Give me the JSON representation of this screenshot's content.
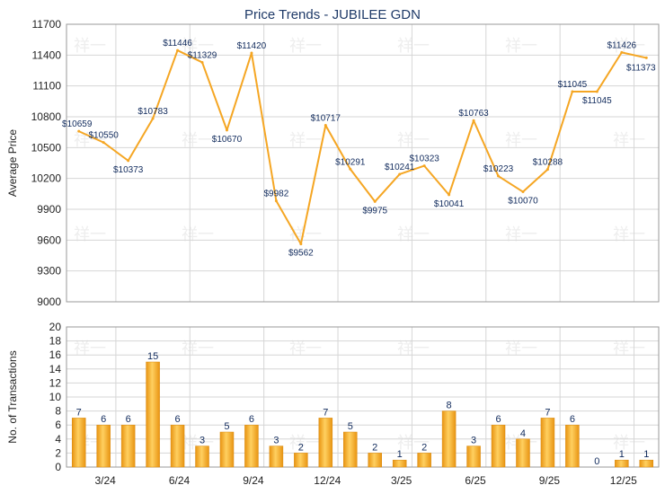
{
  "chart_data": [
    {
      "type": "line",
      "title": "Price Trends - JUBILEE GDN",
      "ylabel": "Average Price",
      "ylim": [
        9000,
        11700
      ],
      "yticks": [
        9000,
        9300,
        9600,
        9900,
        10200,
        10500,
        10800,
        11100,
        11400,
        11700
      ],
      "grid": true,
      "color": "#f5a623",
      "series": [
        {
          "values": [
            10659,
            10550,
            10373,
            10783,
            11446,
            11329,
            10670,
            11420,
            9982,
            9562,
            10717,
            10291,
            9975,
            10241,
            10323,
            10041,
            10763,
            10223,
            10070,
            10288,
            11045,
            11045,
            11426,
            11373
          ],
          "labels": [
            "$10659",
            "$10550",
            "$10373",
            "$10783",
            "$11446",
            "$11329",
            "$10670",
            "$11420",
            "$9982",
            "$9562",
            "$10717",
            "$10291",
            "$9975",
            "$10241",
            "$10323",
            "$10041",
            "$10763",
            "$10223",
            "$10070",
            "$10288",
            "$11045",
            "$11045",
            "$11426",
            "$11373"
          ]
        }
      ]
    },
    {
      "type": "bar",
      "ylabel": "No. of Transactions",
      "ylim": [
        0,
        20
      ],
      "yticks": [
        0,
        2,
        4,
        6,
        8,
        10,
        12,
        14,
        16,
        18,
        20
      ],
      "grid": true,
      "color": "#f5a623",
      "xtick_labels": [
        "3/24",
        "6/24",
        "9/24",
        "12/24",
        "3/25",
        "6/25",
        "9/25",
        "12/25"
      ],
      "xtick_positions": [
        2,
        5,
        8,
        11,
        14,
        17,
        20,
        23
      ],
      "values": [
        7,
        6,
        6,
        15,
        6,
        3,
        5,
        6,
        3,
        2,
        7,
        5,
        2,
        1,
        2,
        8,
        3,
        6,
        4,
        7,
        6,
        0,
        1,
        1
      ]
    }
  ],
  "watermark": "祥一"
}
